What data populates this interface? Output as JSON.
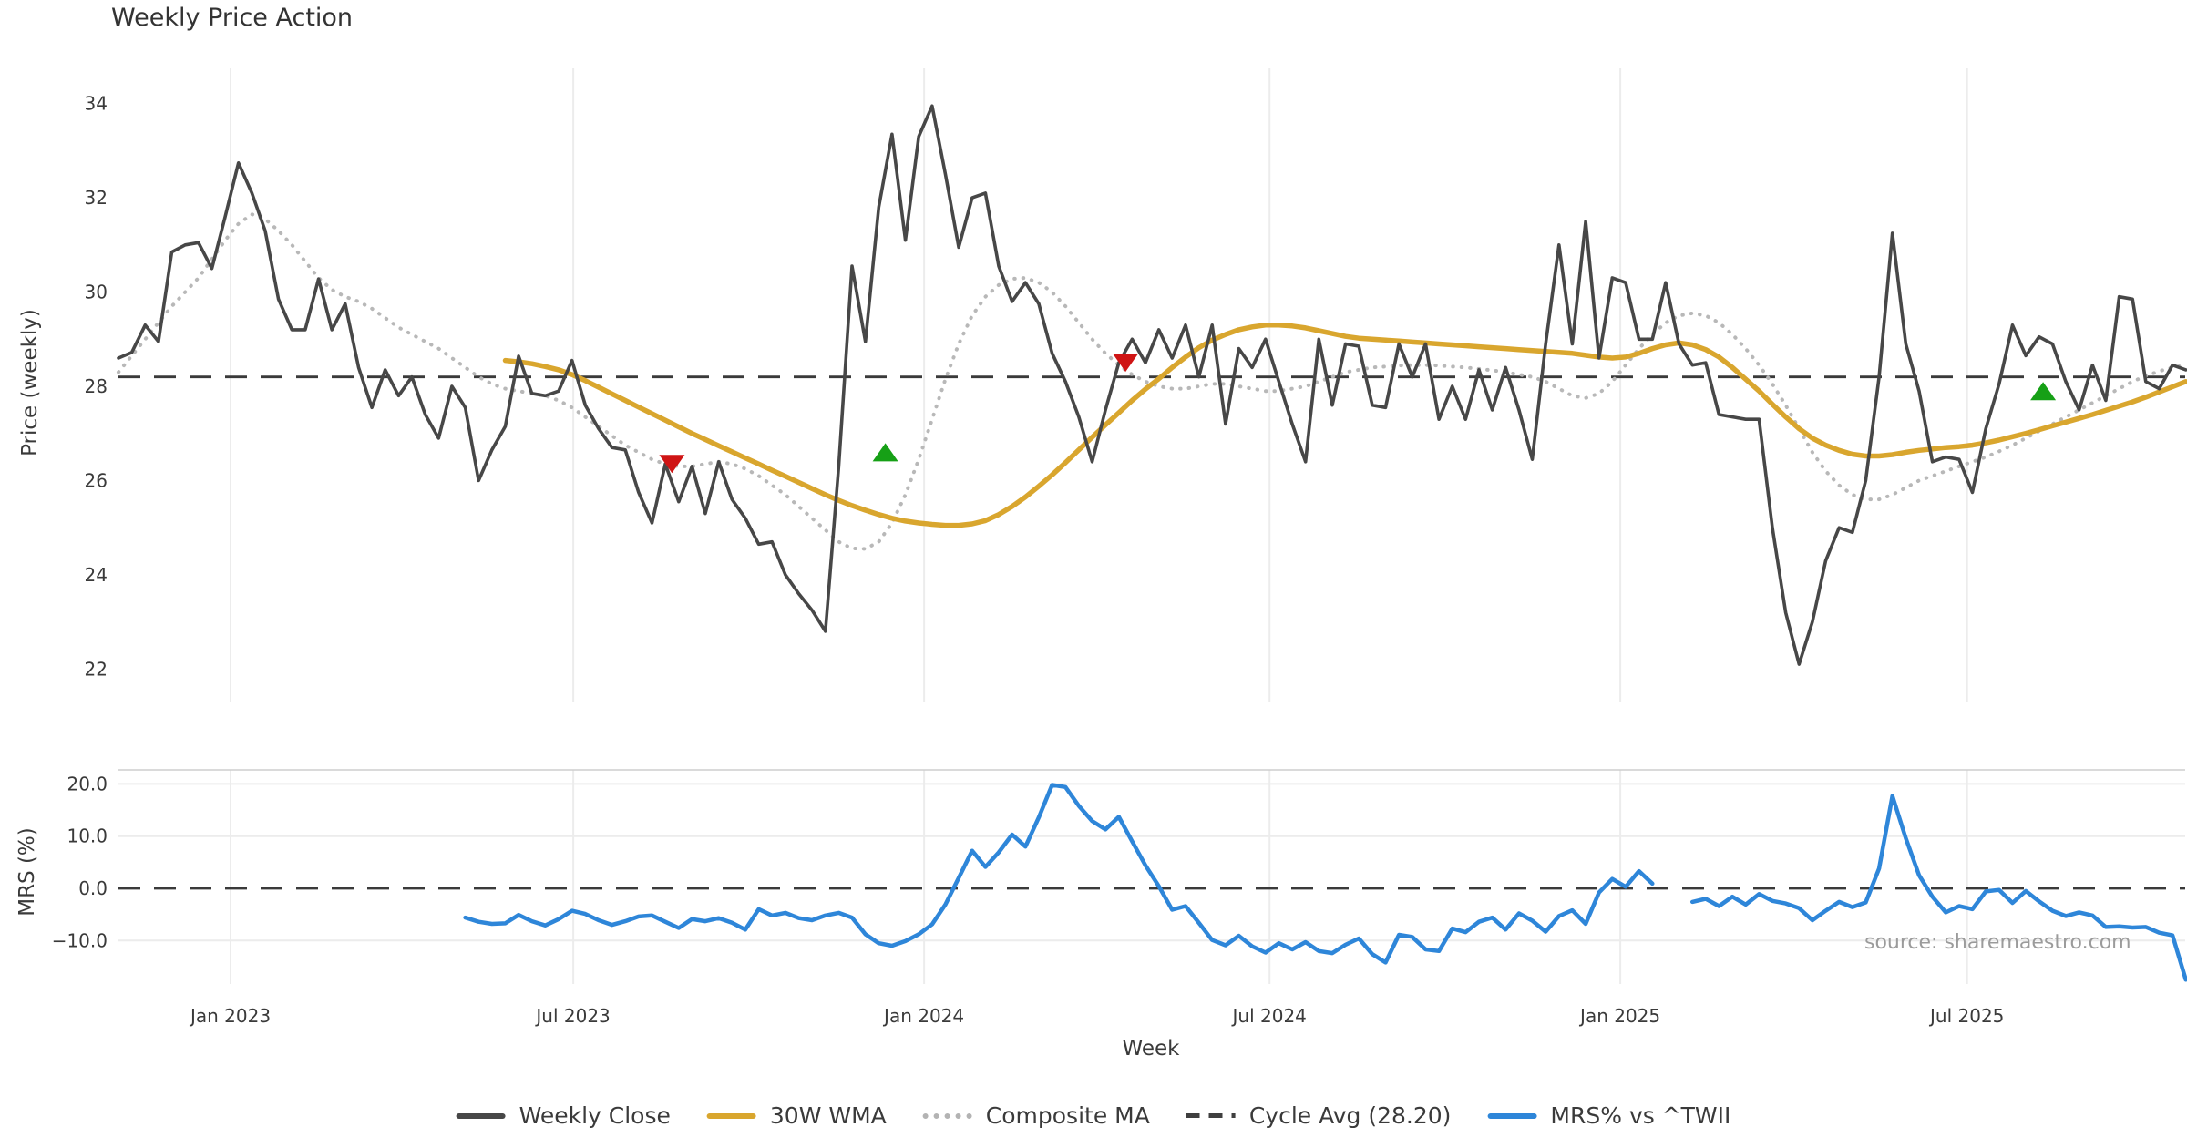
{
  "title": "Weekly Price Action",
  "source_note": "source: sharemaestro.com",
  "legend": {
    "weekly_close": "Weekly Close",
    "wma": "30W WMA",
    "composite": "Composite MA",
    "cycle_avg": "Cycle Avg (28.20)",
    "mrs": "MRS% vs ^TWII"
  },
  "colors": {
    "weekly_close": "#474747",
    "wma": "#d9a62e",
    "composite": "#b8b8b8",
    "cycle_avg": "#3a3a3a",
    "mrs": "#2e86d9",
    "buy_marker": "#16a016",
    "sell_marker": "#cf1414",
    "gridline": "#ececec",
    "panel_edge": "#cdcdcd"
  },
  "chart_data": [
    {
      "type": "line",
      "panel": "price",
      "title": "Weekly Price Action",
      "xlabel": "Week",
      "ylabel": "Price (weekly)",
      "ylim": [
        21.3,
        34.75
      ],
      "yticks": [
        34,
        32,
        30,
        28,
        26,
        24,
        22
      ],
      "grid": "vertical-only",
      "x_unit": "weeks since 2022-11-07",
      "x_gridlines": [
        {
          "label": "Jan 2023",
          "week": 8.4
        },
        {
          "label": "Jul 2023",
          "week": 34.1
        },
        {
          "label": "Jan 2024",
          "week": 60.4
        },
        {
          "label": "Jul 2024",
          "week": 86.3
        },
        {
          "label": "Jan 2025",
          "week": 112.6
        },
        {
          "label": "Jul 2025",
          "week": 138.6
        }
      ],
      "cycle_avg_value": 28.2,
      "series": [
        {
          "name": "Weekly Close",
          "start_week": 0,
          "values": [
            28.6,
            28.72,
            29.3,
            28.95,
            30.85,
            31.0,
            31.05,
            30.5,
            31.6,
            32.74,
            32.1,
            31.3,
            29.85,
            29.2,
            29.2,
            30.28,
            29.2,
            29.75,
            28.4,
            27.55,
            28.35,
            27.8,
            28.2,
            27.4,
            26.9,
            28.0,
            27.55,
            26.0,
            26.65,
            27.15,
            28.64,
            27.85,
            27.8,
            27.9,
            28.55,
            27.6,
            27.1,
            26.7,
            26.65,
            25.75,
            25.1,
            26.35,
            25.55,
            26.3,
            25.3,
            26.4,
            25.6,
            25.2,
            24.65,
            24.7,
            24.0,
            23.6,
            23.25,
            22.8,
            26.3,
            30.55,
            28.95,
            31.8,
            33.35,
            31.1,
            33.3,
            33.95,
            32.5,
            30.95,
            32.0,
            32.1,
            30.55,
            29.8,
            30.2,
            29.75,
            28.7,
            28.1,
            27.35,
            26.4,
            27.5,
            28.5,
            29.0,
            28.5,
            29.2,
            28.6,
            29.3,
            28.2,
            29.3,
            27.2,
            28.8,
            28.4,
            29.0,
            28.1,
            27.2,
            26.4,
            29.0,
            27.6,
            28.9,
            28.85,
            27.6,
            27.55,
            28.9,
            28.2,
            28.9,
            27.3,
            28.0,
            27.3,
            28.35,
            27.5,
            28.4,
            27.5,
            26.45,
            28.9,
            31.0,
            28.9,
            31.5,
            28.6,
            30.3,
            30.2,
            29.0,
            29.0,
            30.2,
            28.9,
            28.45,
            28.5,
            27.4,
            27.35,
            27.3,
            27.3,
            25.0,
            23.2,
            22.1,
            23.0,
            24.3,
            25.0,
            24.9,
            26.0,
            28.2,
            31.25,
            28.9,
            27.9,
            26.4,
            26.5,
            26.45,
            25.75,
            27.1,
            28.05,
            29.3,
            28.65,
            29.05,
            28.9,
            28.1,
            27.5,
            28.45,
            27.7,
            29.9,
            29.85,
            28.1,
            27.95,
            28.45,
            28.35
          ]
        },
        {
          "name": "30W WMA",
          "start_week": 29,
          "values": [
            28.55,
            28.52,
            28.48,
            28.42,
            28.35,
            28.25,
            28.12,
            27.98,
            27.84,
            27.7,
            27.56,
            27.42,
            27.28,
            27.14,
            27.0,
            26.87,
            26.74,
            26.61,
            26.48,
            26.35,
            26.22,
            26.09,
            25.96,
            25.83,
            25.7,
            25.58,
            25.47,
            25.37,
            25.28,
            25.2,
            25.14,
            25.1,
            25.07,
            25.05,
            25.05,
            25.08,
            25.15,
            25.28,
            25.45,
            25.65,
            25.88,
            26.12,
            26.38,
            26.65,
            26.92,
            27.18,
            27.44,
            27.7,
            27.94,
            28.16,
            28.4,
            28.62,
            28.82,
            28.98,
            29.1,
            29.2,
            29.26,
            29.3,
            29.3,
            29.28,
            29.24,
            29.18,
            29.12,
            29.06,
            29.02,
            29.0,
            28.98,
            28.96,
            28.94,
            28.92,
            28.9,
            28.88,
            28.86,
            28.84,
            28.82,
            28.8,
            28.78,
            28.76,
            28.74,
            28.72,
            28.7,
            28.66,
            28.62,
            28.6,
            28.62,
            28.7,
            28.8,
            28.88,
            28.92,
            28.88,
            28.78,
            28.62,
            28.4,
            28.15,
            27.9,
            27.62,
            27.35,
            27.1,
            26.9,
            26.75,
            26.64,
            26.56,
            26.52,
            26.52,
            26.55,
            26.6,
            26.64,
            26.67,
            26.7,
            26.72,
            26.75,
            26.8,
            26.86,
            26.93,
            27.0,
            27.08,
            27.16,
            27.24,
            27.32,
            27.4,
            27.49,
            27.58,
            27.67,
            27.77,
            27.88,
            27.99,
            28.1
          ]
        },
        {
          "name": "Composite MA",
          "start_week": 0,
          "values": [
            28.3,
            28.65,
            29.0,
            29.35,
            29.7,
            30.0,
            30.3,
            30.7,
            31.1,
            31.45,
            31.65,
            31.55,
            31.3,
            31.0,
            30.65,
            30.3,
            30.05,
            29.9,
            29.8,
            29.65,
            29.45,
            29.25,
            29.1,
            28.95,
            28.8,
            28.6,
            28.4,
            28.2,
            28.05,
            27.95,
            27.9,
            27.85,
            27.8,
            27.7,
            27.55,
            27.35,
            27.15,
            26.95,
            26.75,
            26.6,
            26.45,
            26.35,
            26.3,
            26.3,
            26.35,
            26.4,
            26.35,
            26.25,
            26.1,
            25.9,
            25.7,
            25.45,
            25.2,
            24.95,
            24.7,
            24.56,
            24.55,
            24.7,
            25.1,
            25.7,
            26.45,
            27.3,
            28.15,
            28.9,
            29.5,
            29.9,
            30.15,
            30.28,
            30.3,
            30.2,
            30.0,
            29.7,
            29.35,
            29.0,
            28.7,
            28.45,
            28.25,
            28.1,
            28.0,
            27.95,
            27.95,
            28.0,
            28.05,
            28.05,
            28.0,
            27.95,
            27.9,
            27.9,
            27.95,
            28.0,
            28.1,
            28.2,
            28.3,
            28.35,
            28.4,
            28.42,
            28.44,
            28.45,
            28.45,
            28.44,
            28.42,
            28.4,
            28.37,
            28.34,
            28.3,
            28.25,
            28.2,
            28.1,
            27.95,
            27.8,
            27.75,
            27.85,
            28.1,
            28.45,
            28.8,
            29.1,
            29.35,
            29.5,
            29.55,
            29.5,
            29.35,
            29.1,
            28.8,
            28.45,
            28.05,
            27.6,
            27.1,
            26.6,
            26.2,
            25.9,
            25.7,
            25.6,
            25.6,
            25.7,
            25.85,
            26.0,
            26.1,
            26.2,
            26.3,
            26.4,
            26.5,
            26.62,
            26.75,
            26.9,
            27.05,
            27.2,
            27.35,
            27.5,
            27.65,
            27.8,
            27.95,
            28.1,
            28.22,
            28.32,
            28.4,
            28.45
          ]
        }
      ],
      "markers": [
        {
          "signal": "sell",
          "week": 41.5,
          "price": 26.35
        },
        {
          "signal": "buy",
          "week": 57.5,
          "price": 26.6
        },
        {
          "signal": "sell",
          "week": 75.5,
          "price": 28.5
        },
        {
          "signal": "buy",
          "week": 144.3,
          "price": 27.9
        }
      ]
    },
    {
      "type": "line",
      "panel": "mrs",
      "ylabel": "MRS (%)",
      "ylim": [
        -18.3,
        22.7
      ],
      "yticks": [
        {
          "v": 20,
          "label": "20.0"
        },
        {
          "v": 10,
          "label": "10.0"
        },
        {
          "v": 0,
          "label": "0.0"
        },
        {
          "v": -10,
          "label": "−10.0"
        }
      ],
      "zero_line": 0,
      "grid": "horizontal-and-vertical",
      "series": [
        {
          "name": "MRS% vs ^TWII",
          "start_week": 26,
          "values": [
            -5.6,
            -6.4,
            -6.8,
            -6.7,
            -5.1,
            -6.3,
            -7.1,
            -5.9,
            -4.3,
            -4.9,
            -6.1,
            -7.0,
            -6.3,
            -5.4,
            -5.2,
            -6.4,
            -7.6,
            -5.9,
            -6.3,
            -5.7,
            -6.6,
            -7.9,
            -4.0,
            -5.2,
            -4.7,
            -5.7,
            -6.1,
            -5.2,
            -4.7,
            -5.6,
            -8.8,
            -10.5,
            -11.0,
            -10.1,
            -8.8,
            -6.9,
            -3.1,
            2.0,
            7.2,
            4.1,
            6.9,
            10.3,
            8.0,
            13.6,
            19.8,
            19.4,
            15.8,
            12.9,
            11.3,
            13.7,
            9.0,
            4.4,
            0.4,
            -4.1,
            -3.4,
            -6.6,
            -9.9,
            -10.9,
            -9.1,
            -11.1,
            -12.3,
            -10.5,
            -11.7,
            -10.3,
            -12.0,
            -12.4,
            -10.8,
            -9.6,
            -12.6,
            -14.2,
            -8.9,
            -9.3,
            -11.7,
            -12.0,
            -7.7,
            -8.4,
            -6.4,
            -5.6,
            -7.9,
            -4.8,
            -6.2,
            -8.3,
            -5.3,
            -4.2,
            -6.8,
            -0.8,
            1.8,
            0.3,
            3.3,
            0.9,
            null,
            null,
            -2.6,
            -2.0,
            -3.4,
            -1.6,
            -3.1,
            -1.1,
            -2.4,
            -2.9,
            -3.8,
            -6.1,
            -4.3,
            -2.6,
            -3.6,
            -2.7,
            3.8,
            17.7,
            9.6,
            2.5,
            -1.6,
            -4.6,
            -3.4,
            -4.0,
            -0.6,
            -0.3,
            -2.8,
            -0.5,
            -2.5,
            -4.3,
            -5.3,
            -4.6,
            -5.2,
            -7.4,
            -7.3,
            -7.5,
            -7.4,
            -8.5,
            -9.0,
            -17.5
          ]
        }
      ]
    }
  ]
}
